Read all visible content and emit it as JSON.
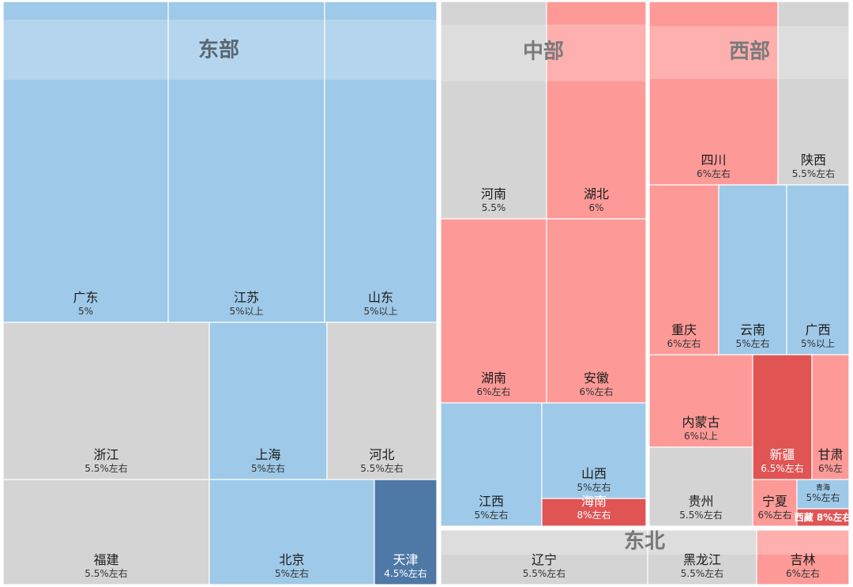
{
  "chart_data": {
    "type": "treemap",
    "regions": [
      {
        "name": "东部",
        "cells": [
          {
            "name": "广东",
            "value": "5%",
            "color": "#9fc9e8"
          },
          {
            "name": "江苏",
            "value": "5%以上",
            "color": "#9fc9e8"
          },
          {
            "name": "山东",
            "value": "5%以上",
            "color": "#9fc9e8"
          },
          {
            "name": "浙江",
            "value": "5.5%左右",
            "color": "#d4d4d4"
          },
          {
            "name": "上海",
            "value": "5%左右",
            "color": "#9fc9e8"
          },
          {
            "name": "河北",
            "value": "5.5%左右",
            "color": "#d4d4d4"
          },
          {
            "name": "福建",
            "value": "5.5%左右",
            "color": "#d4d4d4"
          },
          {
            "name": "北京",
            "value": "5%左右",
            "color": "#9fc9e8"
          },
          {
            "name": "天津",
            "value": "4.5%左右",
            "color": "#4e78a6"
          }
        ]
      },
      {
        "name": "中部",
        "cells": [
          {
            "name": "河南",
            "value": "5.5%",
            "color": "#d4d4d4"
          },
          {
            "name": "湖北",
            "value": "6%",
            "color": "#fd9a98"
          },
          {
            "name": "湖南",
            "value": "6%左右",
            "color": "#fd9a98"
          },
          {
            "name": "安徽",
            "value": "6%左右",
            "color": "#fd9a98"
          },
          {
            "name": "江西",
            "value": "5%左右",
            "color": "#9fc9e8"
          },
          {
            "name": "山西",
            "value": "5%左右",
            "color": "#9fc9e8"
          },
          {
            "name": "海南",
            "value": "8%左右",
            "color": "#e05454"
          }
        ]
      },
      {
        "name": "西部",
        "cells": [
          {
            "name": "四川",
            "value": "6%左右",
            "color": "#fd9a98"
          },
          {
            "name": "陕西",
            "value": "5.5%左右",
            "color": "#d4d4d4"
          },
          {
            "name": "重庆",
            "value": "6%左右",
            "color": "#fd9a98"
          },
          {
            "name": "云南",
            "value": "5%左右",
            "color": "#9fc9e8"
          },
          {
            "name": "广西",
            "value": "5%以上",
            "color": "#9fc9e8"
          },
          {
            "name": "内蒙古",
            "value": "6%以上",
            "color": "#fd9a98"
          },
          {
            "name": "新疆",
            "value": "6.5%左右",
            "color": "#e05454"
          },
          {
            "name": "甘肃",
            "value": "6%左",
            "color": "#fd9a98"
          },
          {
            "name": "贵州",
            "value": "5.5%左右",
            "color": "#d4d4d4"
          },
          {
            "name": "宁夏",
            "value": "6%左右",
            "color": "#fd9a98"
          },
          {
            "name": "青海",
            "value": "5%左右",
            "color": "#9fc9e8"
          },
          {
            "name": "西藏",
            "value": "8%左右",
            "color": "#e05454"
          }
        ]
      },
      {
        "name": "东北",
        "cells": [
          {
            "name": "辽宁",
            "value": "5.5%左右",
            "color": "#d4d4d4"
          },
          {
            "name": "黑龙江",
            "value": "5.5%左右",
            "color": "#d4d4d4"
          },
          {
            "name": "吉林",
            "value": "6%左右",
            "color": "#fd9a98"
          }
        ]
      }
    ],
    "colors": {
      "below_5_5": "#4e78a6",
      "around_5": "#9fc9e8",
      "around_5_5": "#d4d4d4",
      "around_6": "#fd9a98",
      "high": "#e05454"
    }
  }
}
